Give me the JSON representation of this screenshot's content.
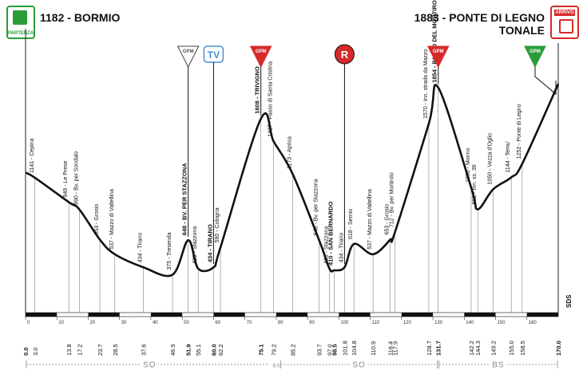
{
  "header": {
    "start": "1182 - BORMIO",
    "finish_line1": "1883 - PONTE DI LEGNO",
    "finish_line2": "TONALE",
    "start_badge": "PARTENZA",
    "finish_badge": "ARRIVO"
  },
  "markers": [
    {
      "km": 51.9,
      "type": "GPM",
      "color": "#ffffff",
      "shape": "triangle",
      "label": "GPM"
    },
    {
      "km": 60.0,
      "type": "TV",
      "color": "#ffffff",
      "shape": "tv",
      "label": "TV"
    },
    {
      "km": 75.1,
      "type": "GPM",
      "color": "#d62a2a",
      "shape": "triangle",
      "label": "GPM"
    },
    {
      "km": 101.8,
      "type": "R",
      "color": "#d62a2a",
      "shape": "circle",
      "label": "R"
    },
    {
      "km": 131.7,
      "type": "GPM",
      "color": "#d62a2a",
      "shape": "triangle",
      "label": "GPM"
    },
    {
      "km": 170.0,
      "type": "GPM",
      "color": "#2a9d3a",
      "shape": "triangle",
      "label": "GPM",
      "offset_left": true
    }
  ],
  "chart_data": {
    "type": "line",
    "title": "",
    "xlabel": "",
    "ylabel": "",
    "xlim": [
      0,
      170
    ],
    "ylim": [
      300,
      2000
    ],
    "x_ticks": [
      0,
      10,
      20,
      30,
      40,
      50,
      60,
      70,
      80,
      90,
      100,
      110,
      120,
      130,
      140,
      150,
      160
    ],
    "axis_end_label": "SDS",
    "points": [
      {
        "km": 0.0,
        "alt": 1182
      },
      {
        "km": 3.0,
        "alt": 1141
      },
      {
        "km": 13.8,
        "alt": 949
      },
      {
        "km": 17.2,
        "alt": 890
      },
      {
        "km": 23.7,
        "alt": 653
      },
      {
        "km": 28.5,
        "alt": 537
      },
      {
        "km": 37.6,
        "alt": 434
      },
      {
        "km": 46.9,
        "alt": 375
      },
      {
        "km": 51.9,
        "alt": 648
      },
      {
        "km": 55.1,
        "alt": 423
      },
      {
        "km": 60.0,
        "alt": 434
      },
      {
        "km": 62.2,
        "alt": 590
      },
      {
        "km": 75.1,
        "alt": 1608
      },
      {
        "km": 79.2,
        "alt": 1427
      },
      {
        "km": 85.2,
        "alt": 1173
      },
      {
        "km": 93.7,
        "alt": 648
      },
      {
        "km": 97.0,
        "alt": 423
      },
      {
        "km": 98.5,
        "alt": 410
      },
      {
        "km": 101.8,
        "alt": 434
      },
      {
        "km": 104.8,
        "alt": 618
      },
      {
        "km": 110.9,
        "alt": 537
      },
      {
        "km": 116.4,
        "alt": 653
      },
      {
        "km": 117.9,
        "alt": 712
      },
      {
        "km": 128.7,
        "alt": 1570
      },
      {
        "km": 131.7,
        "alt": 1854
      },
      {
        "km": 142.2,
        "alt": 1066
      },
      {
        "km": 144.3,
        "alt": 892
      },
      {
        "km": 149.2,
        "alt": 1050
      },
      {
        "km": 155.0,
        "alt": 1144
      },
      {
        "km": 158.5,
        "alt": 1252
      },
      {
        "km": 170.0,
        "alt": 1883
      }
    ],
    "labels": [
      {
        "km": 3.0,
        "text": "1141 - Cepina",
        "bold": false
      },
      {
        "km": 13.8,
        "text": "949 - Le Prese",
        "bold": false
      },
      {
        "km": 17.2,
        "text": "890 - Bv. per Sondalo",
        "bold": false
      },
      {
        "km": 23.7,
        "text": "653 - Grosio",
        "bold": false
      },
      {
        "km": 28.5,
        "text": "537 - Mazzo di Valtellina",
        "bold": false
      },
      {
        "km": 37.6,
        "text": "434 - Tirano",
        "bold": false
      },
      {
        "km": 46.9,
        "text": "375 - Tresenda",
        "bold": false
      },
      {
        "km": 51.9,
        "text": "648 - BV. PER STAZZONA",
        "bold": true
      },
      {
        "km": 55.1,
        "text": "423 - Stazzona",
        "bold": false
      },
      {
        "km": 60.0,
        "text": "434 - TIRANO",
        "bold": true
      },
      {
        "km": 62.2,
        "text": "590 - Cologna",
        "bold": false
      },
      {
        "km": 75.1,
        "text": "1608 - TRIVIGNO",
        "bold": true
      },
      {
        "km": 79.2,
        "text": "1427 - Passo di Santa Cristina",
        "bold": false
      },
      {
        "km": 85.2,
        "text": "1173 - Aprica",
        "bold": false
      },
      {
        "km": 93.7,
        "text": "648 - Bv. per Stazzona",
        "bold": false
      },
      {
        "km": 97.0,
        "text": "423 - Stazzona",
        "bold": false
      },
      {
        "km": 98.5,
        "text": "410 - SAN BERNARDO",
        "bold": true
      },
      {
        "km": 101.8,
        "text": "434 - Tirano",
        "bold": false
      },
      {
        "km": 104.8,
        "text": "618 - Sernio",
        "bold": false
      },
      {
        "km": 110.9,
        "text": "537 - Mazzo di Valtellina",
        "bold": false
      },
      {
        "km": 116.4,
        "text": "653 - Grosio",
        "bold": false
      },
      {
        "km": 117.9,
        "text": "712 - Bv. per Mortirolo",
        "bold": false
      },
      {
        "km": 128.7,
        "text": "1570 - Inn. strada da Mazzo",
        "bold": false
      },
      {
        "km": 131.7,
        "text": "1854 - PASSO DEL MORTIROLO",
        "bold": true
      },
      {
        "km": 142.2,
        "text": "1066 - Monno",
        "bold": false
      },
      {
        "km": 144.3,
        "text": "892 - Inn. ss. 39",
        "bold": false
      },
      {
        "km": 149.2,
        "text": "1050 - Vezza d'Oglio",
        "bold": false
      },
      {
        "km": 155.0,
        "text": "1144 - Temu'",
        "bold": false
      },
      {
        "km": 158.5,
        "text": "1252 - Ponte di Legno",
        "bold": false
      }
    ],
    "km_labels": [
      {
        "text": "0.0",
        "km": 0.0,
        "bold": true
      },
      {
        "text": "3.0",
        "km": 3.0,
        "bold": false
      },
      {
        "text": "13.8",
        "km": 13.8,
        "bold": false
      },
      {
        "text": "17.2",
        "km": 17.2,
        "bold": false
      },
      {
        "text": "23.7",
        "km": 23.7,
        "bold": false
      },
      {
        "text": "28.5",
        "km": 28.5,
        "bold": false
      },
      {
        "text": "37.6",
        "km": 37.6,
        "bold": false
      },
      {
        "text": "46.9",
        "km": 46.9,
        "bold": false
      },
      {
        "text": "51.9",
        "km": 51.9,
        "bold": true
      },
      {
        "text": "55.1",
        "km": 55.1,
        "bold": false
      },
      {
        "text": "60.0",
        "km": 60.0,
        "bold": true
      },
      {
        "text": "62.2",
        "km": 62.2,
        "bold": false
      },
      {
        "text": "75.1",
        "km": 75.1,
        "bold": true
      },
      {
        "text": "79.2",
        "km": 79.2,
        "bold": false
      },
      {
        "text": "85.2",
        "km": 85.2,
        "bold": false
      },
      {
        "text": "93.7",
        "km": 93.7,
        "bold": false
      },
      {
        "text": "97.0",
        "km": 97.0,
        "bold": false
      },
      {
        "text": "98.5",
        "km": 98.5,
        "bold": true
      },
      {
        "text": "101.8",
        "km": 101.8,
        "bold": false
      },
      {
        "text": "104.8",
        "km": 104.8,
        "bold": false
      },
      {
        "text": "110.9",
        "km": 110.9,
        "bold": false
      },
      {
        "text": "116.4",
        "km": 116.4,
        "bold": false
      },
      {
        "text": "117.9",
        "km": 117.9,
        "bold": false
      },
      {
        "text": "128.7",
        "km": 128.7,
        "bold": false
      },
      {
        "text": "131.7",
        "km": 131.7,
        "bold": true
      },
      {
        "text": "142.2",
        "km": 142.2,
        "bold": false
      },
      {
        "text": "144.3",
        "km": 144.3,
        "bold": false
      },
      {
        "text": "149.2",
        "km": 149.2,
        "bold": false
      },
      {
        "text": "155.0",
        "km": 155.0,
        "bold": false
      },
      {
        "text": "158.5",
        "km": 158.5,
        "bold": false
      },
      {
        "text": "170.0",
        "km": 170.0,
        "bold": true
      }
    ],
    "provinces": [
      {
        "from": 0.0,
        "to": 79.2,
        "label": "SO"
      },
      {
        "from": 79.2,
        "to": 81.2,
        "label": "BS"
      },
      {
        "from": 81.2,
        "to": 131.7,
        "label": "SO"
      },
      {
        "from": 131.7,
        "to": 170.0,
        "label": "BS"
      }
    ]
  }
}
